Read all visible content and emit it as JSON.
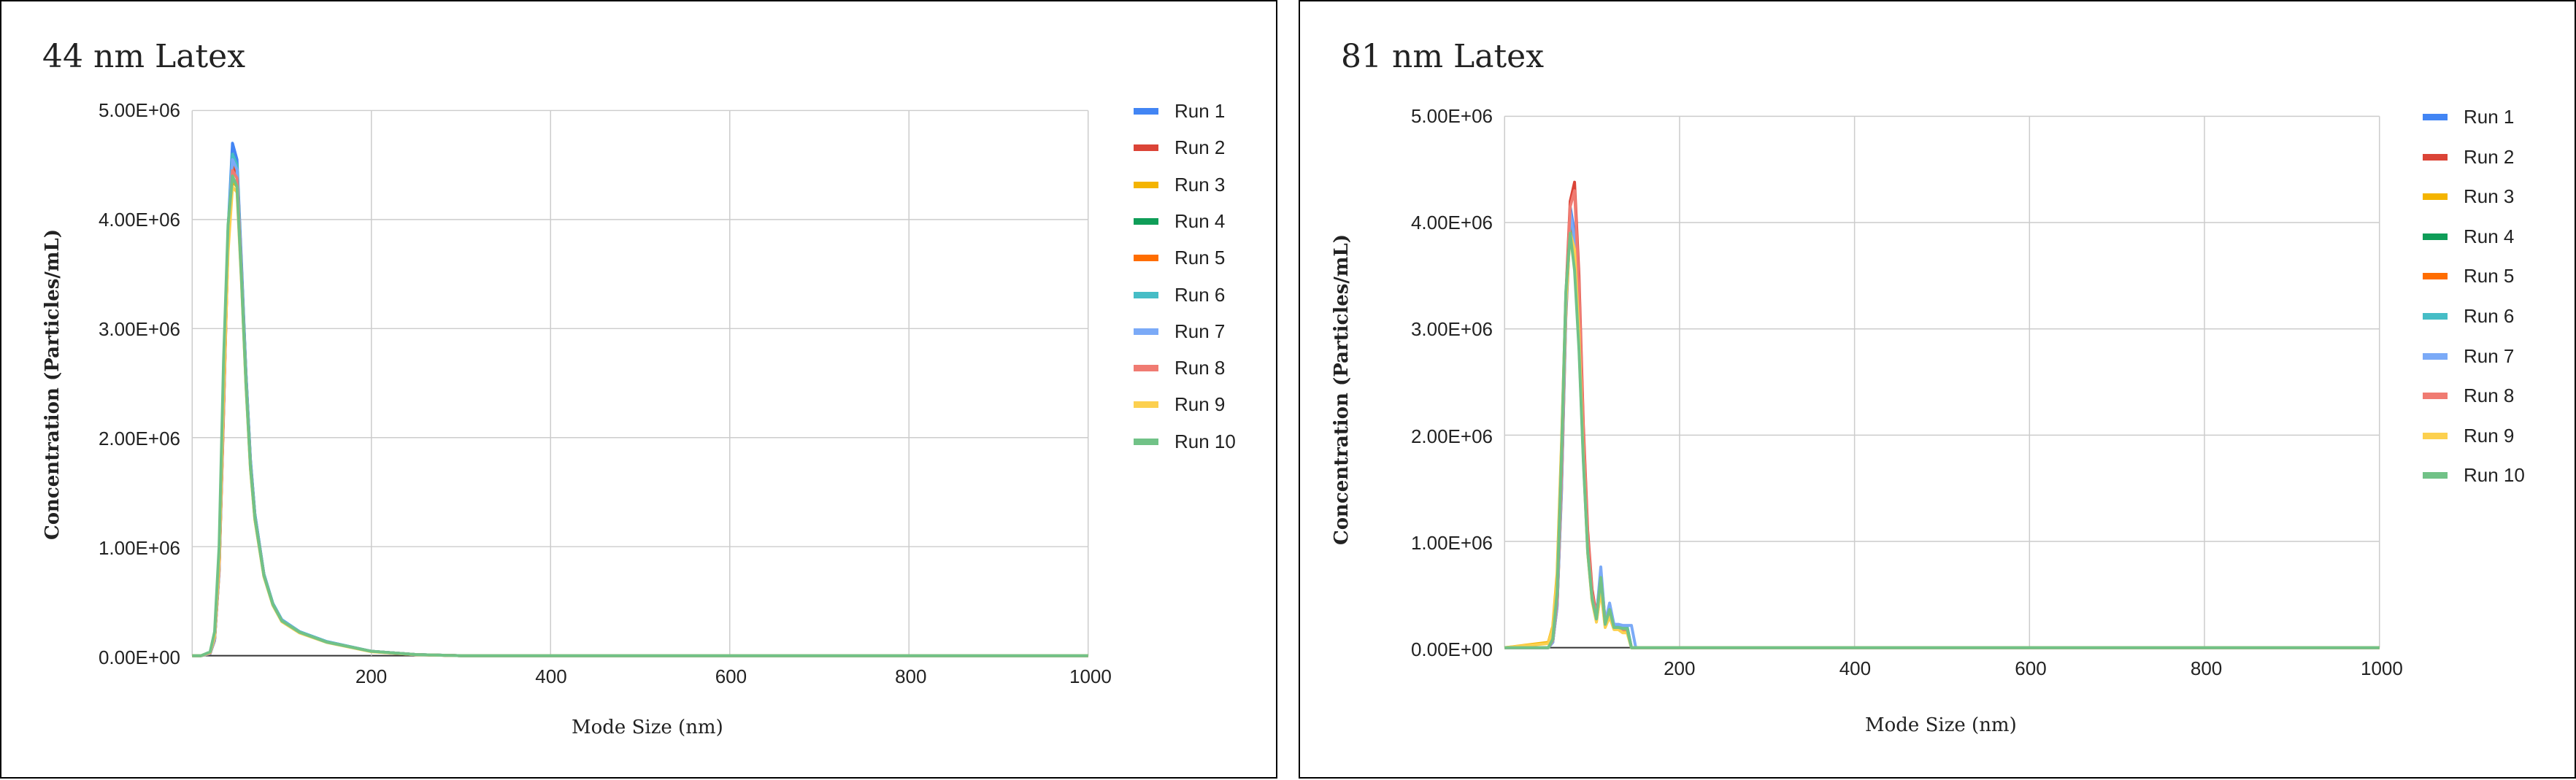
{
  "chart_data": [
    {
      "type": "line",
      "title": "44 nm Latex",
      "xlabel": "Mode Size (nm)",
      "ylabel": "Concentration (Particles/mL)",
      "xlim": [
        0,
        1000
      ],
      "ylim": [
        0,
        5000000
      ],
      "xticks": [
        "200",
        "400",
        "600",
        "800",
        "1000"
      ],
      "yticks": [
        "0.00E+00",
        "1.00E+06",
        "2.00E+06",
        "3.00E+06",
        "4.00E+06",
        "5.00E+06"
      ],
      "grid": true,
      "legend_position": "right",
      "x": [
        0,
        10,
        20,
        25,
        30,
        35,
        40,
        45,
        50,
        55,
        60,
        65,
        70,
        80,
        90,
        100,
        120,
        150,
        200,
        250,
        300,
        1000
      ],
      "series": [
        {
          "name": "Run 1",
          "color": "#4285F4",
          "values": [
            0,
            0,
            20000,
            150000,
            800000,
            2300000,
            3900000,
            4700000,
            4550000,
            3600000,
            2600000,
            1800000,
            1300000,
            750000,
            480000,
            330000,
            220000,
            130000,
            40000,
            10000,
            0,
            0
          ]
        },
        {
          "name": "Run 2",
          "color": "#DB4437",
          "values": [
            0,
            0,
            20000,
            150000,
            790000,
            2250000,
            3800000,
            4500000,
            4400000,
            3500000,
            2550000,
            1750000,
            1280000,
            740000,
            470000,
            320000,
            215000,
            125000,
            40000,
            10000,
            0,
            0
          ]
        },
        {
          "name": "Run 3",
          "color": "#F4B400",
          "values": [
            0,
            0,
            30000,
            180000,
            850000,
            2400000,
            3750000,
            4350000,
            4300000,
            3450000,
            2500000,
            1720000,
            1250000,
            730000,
            465000,
            315000,
            210000,
            125000,
            38000,
            9000,
            0,
            0
          ]
        },
        {
          "name": "Run 4",
          "color": "#0F9D58",
          "values": [
            0,
            0,
            20000,
            140000,
            780000,
            2250000,
            3850000,
            4600000,
            4500000,
            3550000,
            2580000,
            1780000,
            1290000,
            745000,
            475000,
            325000,
            218000,
            128000,
            40000,
            10000,
            0,
            0
          ]
        },
        {
          "name": "Run 5",
          "color": "#FF6D00",
          "values": [
            0,
            0,
            20000,
            140000,
            760000,
            2200000,
            3800000,
            4550000,
            4450000,
            3500000,
            2540000,
            1760000,
            1270000,
            740000,
            470000,
            322000,
            216000,
            126000,
            40000,
            10000,
            0,
            0
          ]
        },
        {
          "name": "Run 6",
          "color": "#46BDC6",
          "values": [
            0,
            0,
            20000,
            150000,
            800000,
            2300000,
            3900000,
            4600000,
            4500000,
            3560000,
            2590000,
            1790000,
            1295000,
            748000,
            478000,
            328000,
            219000,
            129000,
            40000,
            10000,
            0,
            0
          ]
        },
        {
          "name": "Run 7",
          "color": "#7BAAF7",
          "values": [
            0,
            0,
            20000,
            145000,
            780000,
            2250000,
            3850000,
            4550000,
            4460000,
            3530000,
            2560000,
            1770000,
            1280000,
            742000,
            472000,
            324000,
            217000,
            127000,
            40000,
            10000,
            0,
            0
          ]
        },
        {
          "name": "Run 8",
          "color": "#F07B72",
          "values": [
            0,
            0,
            25000,
            170000,
            820000,
            2300000,
            3800000,
            4450000,
            4380000,
            3480000,
            2520000,
            1740000,
            1265000,
            735000,
            468000,
            318000,
            212000,
            124000,
            38000,
            9000,
            0,
            0
          ]
        },
        {
          "name": "Run 9",
          "color": "#FCD04F",
          "values": [
            0,
            0,
            30000,
            180000,
            860000,
            2400000,
            3700000,
            4300000,
            4250000,
            3420000,
            2480000,
            1710000,
            1245000,
            725000,
            462000,
            312000,
            208000,
            122000,
            37000,
            9000,
            0,
            0
          ]
        },
        {
          "name": "Run 10",
          "color": "#71C287",
          "values": [
            0,
            0,
            35000,
            220000,
            1000000,
            2700000,
            3950000,
            4400000,
            4300000,
            3450000,
            2500000,
            1730000,
            1260000,
            735000,
            470000,
            320000,
            215000,
            125000,
            40000,
            10000,
            0,
            0
          ]
        }
      ]
    },
    {
      "type": "line",
      "title": "81 nm Latex",
      "xlabel": "Mode Size (nm)",
      "ylabel": "Concentration (Particles/mL)",
      "xlim": [
        0,
        1000
      ],
      "ylim": [
        0,
        5000000
      ],
      "xticks": [
        "200",
        "400",
        "600",
        "800",
        "1000"
      ],
      "yticks": [
        "0.00E+00",
        "1.00E+06",
        "2.00E+06",
        "3.00E+06",
        "4.00E+06",
        "5.00E+06"
      ],
      "grid": true,
      "legend_position": "right",
      "x": [
        0,
        50,
        55,
        60,
        65,
        70,
        75,
        80,
        85,
        90,
        95,
        100,
        105,
        110,
        115,
        120,
        125,
        130,
        135,
        140,
        145,
        150,
        1000
      ],
      "series": [
        {
          "name": "Run 1",
          "color": "#4285F4",
          "values": [
            0,
            0,
            50000,
            400000,
            1500000,
            3200000,
            4150000,
            3900000,
            3000000,
            1900000,
            1000000,
            500000,
            300000,
            700000,
            250000,
            400000,
            200000,
            200000,
            200000,
            200000,
            0,
            0,
            0
          ]
        },
        {
          "name": "Run 2",
          "color": "#DB4437",
          "values": [
            0,
            0,
            80000,
            500000,
            1700000,
            3300000,
            4200000,
            4380000,
            3500000,
            2100000,
            1100000,
            550000,
            300000,
            650000,
            250000,
            350000,
            200000,
            200000,
            180000,
            180000,
            0,
            0,
            0
          ]
        },
        {
          "name": "Run 3",
          "color": "#F4B400",
          "values": [
            0,
            50000,
            200000,
            700000,
            1900000,
            3300000,
            3950000,
            3800000,
            3000000,
            1800000,
            900000,
            450000,
            250000,
            550000,
            200000,
            300000,
            180000,
            180000,
            150000,
            150000,
            0,
            0,
            0
          ]
        },
        {
          "name": "Run 4",
          "color": "#0F9D58",
          "values": [
            0,
            0,
            60000,
            420000,
            1550000,
            3200000,
            4050000,
            3850000,
            2900000,
            1850000,
            950000,
            480000,
            280000,
            700000,
            230000,
            380000,
            200000,
            200000,
            190000,
            190000,
            0,
            0,
            0
          ]
        },
        {
          "name": "Run 5",
          "color": "#FF6D00",
          "values": [
            0,
            0,
            50000,
            380000,
            1450000,
            3100000,
            4000000,
            3800000,
            2850000,
            1800000,
            930000,
            470000,
            270000,
            680000,
            220000,
            370000,
            190000,
            190000,
            180000,
            180000,
            0,
            0,
            0
          ]
        },
        {
          "name": "Run 6",
          "color": "#46BDC6",
          "values": [
            0,
            0,
            50000,
            400000,
            1500000,
            3150000,
            4050000,
            3850000,
            2950000,
            1850000,
            960000,
            480000,
            290000,
            720000,
            240000,
            400000,
            210000,
            210000,
            200000,
            200000,
            0,
            0,
            0
          ]
        },
        {
          "name": "Run 7",
          "color": "#7BAAF7",
          "values": [
            0,
            0,
            50000,
            390000,
            1480000,
            3150000,
            4100000,
            3850000,
            2950000,
            1850000,
            970000,
            490000,
            290000,
            760000,
            240000,
            420000,
            220000,
            220000,
            210000,
            210000,
            210000,
            0,
            0
          ]
        },
        {
          "name": "Run 8",
          "color": "#F07B72",
          "values": [
            0,
            0,
            70000,
            460000,
            1650000,
            3250000,
            4150000,
            4300000,
            3400000,
            2050000,
            1050000,
            520000,
            290000,
            640000,
            240000,
            340000,
            190000,
            190000,
            170000,
            170000,
            0,
            0,
            0
          ]
        },
        {
          "name": "Run 9",
          "color": "#FCD04F",
          "values": [
            0,
            40000,
            180000,
            650000,
            1850000,
            3250000,
            3900000,
            3750000,
            2950000,
            1780000,
            890000,
            440000,
            240000,
            540000,
            190000,
            290000,
            170000,
            170000,
            140000,
            140000,
            0,
            0,
            0
          ]
        },
        {
          "name": "Run 10",
          "color": "#71C287",
          "values": [
            0,
            0,
            80000,
            520000,
            1800000,
            3350000,
            3900000,
            3550000,
            2800000,
            1750000,
            900000,
            460000,
            270000,
            660000,
            220000,
            360000,
            190000,
            190000,
            180000,
            180000,
            0,
            0,
            0
          ]
        }
      ]
    }
  ]
}
